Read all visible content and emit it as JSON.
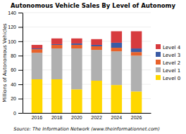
{
  "chart_data": {
    "type": "bar",
    "stacked": true,
    "title": "Autonomous Vehicle Sales By Level of Autonomy",
    "xlabel": "Source: The Information Network (www.theinformationnet.com)",
    "ylabel": "Millions of Autonomous Vehicles",
    "categories": [
      "2016",
      "2018",
      "2020",
      "2022",
      "2024",
      "2026"
    ],
    "series": [
      {
        "name": "Level 0",
        "color": "#FFD700",
        "values": [
          47,
          47,
          33,
          45,
          39,
          30
        ]
      },
      {
        "name": "Level 1",
        "color": "#B0B0B0",
        "values": [
          37,
          43,
          57,
          43,
          47,
          50
        ]
      },
      {
        "name": "Level 2",
        "color": "#E8622A",
        "values": [
          5,
          5,
          5,
          5,
          5,
          5
        ]
      },
      {
        "name": "Level 3",
        "color": "#3B5BA5",
        "values": [
          1,
          1,
          2,
          2,
          7,
          5
        ]
      },
      {
        "name": "Level 4",
        "color": "#D73B3E",
        "values": [
          5,
          8,
          7,
          8,
          16,
          24
        ]
      }
    ],
    "ylim": [
      0,
      140
    ],
    "yticks": [
      0,
      20,
      40,
      60,
      80,
      100,
      120,
      140
    ],
    "grid": true,
    "legend": "right"
  }
}
